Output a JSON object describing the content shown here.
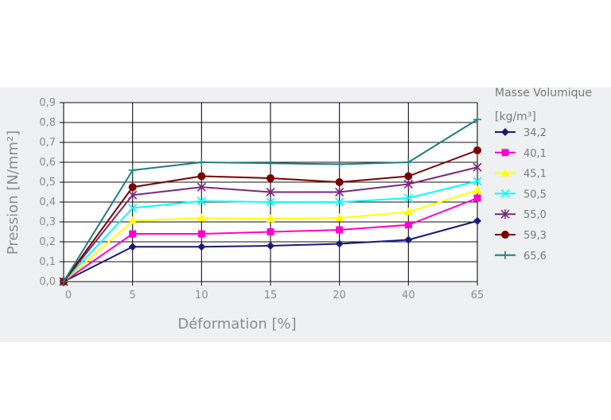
{
  "chart_data": {
    "type": "line",
    "x_categories": [
      "0",
      "5",
      "10",
      "15",
      "20",
      "40",
      "65"
    ],
    "xlabel": "Déformation [%]",
    "ylabel": "Pression [N/mm²]",
    "ylim": [
      0,
      0.9
    ],
    "y_ticks": [
      "0,0",
      "0,1",
      "0,2",
      "0,3",
      "0,4",
      "0,5",
      "0,6",
      "0,7",
      "0,8",
      "0,9"
    ],
    "grid": true,
    "legend_title_line1": "Masse Volumique",
    "legend_title_line2": "[kg/m³]",
    "legend_placement": "right",
    "series": [
      {
        "name": "34,2",
        "color": "#1a1a7a",
        "marker": "diamond",
        "values": [
          0,
          0.175,
          0.175,
          0.18,
          0.19,
          0.21,
          0.305
        ]
      },
      {
        "name": "40,1",
        "color": "#ff00cc",
        "marker": "square",
        "values": [
          0,
          0.24,
          0.24,
          0.25,
          0.26,
          0.285,
          0.42
        ]
      },
      {
        "name": "45,1",
        "color": "#ffff00",
        "marker": "triangle",
        "values": [
          0,
          0.305,
          0.32,
          0.315,
          0.32,
          0.35,
          0.46
        ]
      },
      {
        "name": "50,5",
        "color": "#00ffff",
        "marker": "x",
        "values": [
          0,
          0.37,
          0.405,
          0.4,
          0.4,
          0.42,
          0.505
        ]
      },
      {
        "name": "55,0",
        "color": "#7a2a7a",
        "marker": "star",
        "values": [
          0,
          0.435,
          0.475,
          0.45,
          0.45,
          0.49,
          0.575
        ]
      },
      {
        "name": "59,3",
        "color": "#7a0000",
        "marker": "circle",
        "values": [
          0,
          0.475,
          0.53,
          0.52,
          0.5,
          0.53,
          0.66
        ]
      },
      {
        "name": "65,6",
        "color": "#1f7f7f",
        "marker": "plus",
        "values": [
          0,
          0.56,
          0.6,
          0.595,
          0.59,
          0.6,
          0.815
        ]
      }
    ]
  }
}
